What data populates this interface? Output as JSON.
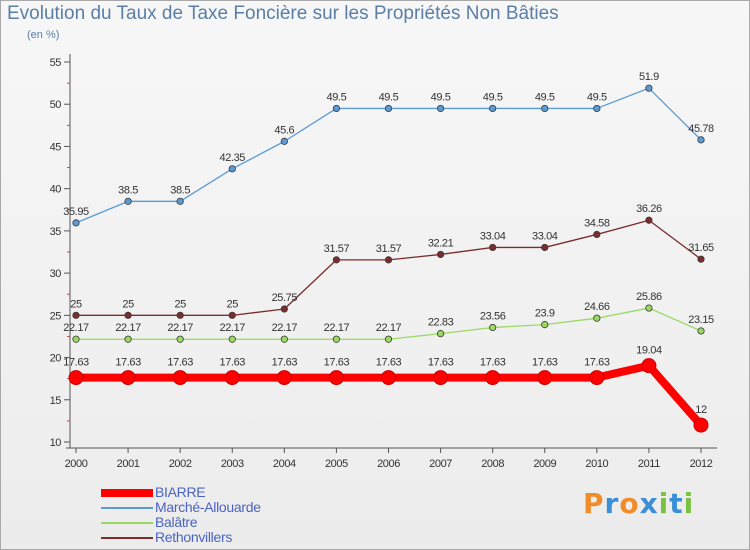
{
  "chart_data": {
    "type": "line",
    "title": "Evolution du Taux de Taxe Foncière sur les Propriétés Non Bâties",
    "subtitle": "(en %)",
    "x": [
      "2000",
      "2001",
      "2002",
      "2003",
      "2004",
      "2005",
      "2006",
      "2007",
      "2008",
      "2009",
      "2010",
      "2011",
      "2012"
    ],
    "ylim": [
      10,
      55
    ],
    "yticks": [
      "10",
      "15",
      "20",
      "25",
      "30",
      "35",
      "40",
      "45",
      "50",
      "55"
    ],
    "grid": false,
    "legend_position": "bottom-left",
    "series": [
      {
        "name": "BIARRE",
        "color": "#ff0000",
        "values": [
          17.63,
          17.63,
          17.63,
          17.63,
          17.63,
          17.63,
          17.63,
          17.63,
          17.63,
          17.63,
          17.63,
          19.04,
          12
        ],
        "labels": [
          "17.63",
          "17.63",
          "17.63",
          "17.63",
          "17.63",
          "17.63",
          "17.63",
          "17.63",
          "17.63",
          "17.63",
          "17.63",
          "19.04",
          "12"
        ]
      },
      {
        "name": "Marché-Allouarde",
        "color": "#5b9bd5",
        "values": [
          35.95,
          38.5,
          38.5,
          42.35,
          45.6,
          49.5,
          49.5,
          49.5,
          49.5,
          49.5,
          49.5,
          51.9,
          45.78
        ],
        "labels": [
          "35.95",
          "38.5",
          "38.5",
          "42.35",
          "45.6",
          "49.5",
          "49.5",
          "49.5",
          "49.5",
          "49.5",
          "49.5",
          "51.9",
          "45.78"
        ]
      },
      {
        "name": "Balâtre",
        "color": "#9ad861",
        "values": [
          22.17,
          22.17,
          22.17,
          22.17,
          22.17,
          22.17,
          22.17,
          22.83,
          23.56,
          23.9,
          24.66,
          25.86,
          23.15
        ],
        "labels": [
          "22.17",
          "22.17",
          "22.17",
          "22.17",
          "22.17",
          "22.17",
          "22.17",
          "22.83",
          "23.56",
          "23.9",
          "24.66",
          "25.86",
          "23.15"
        ]
      },
      {
        "name": "Rethonvillers",
        "color": "#7b2d2d",
        "values": [
          25,
          25,
          25,
          25,
          25.75,
          31.57,
          31.57,
          32.21,
          33.04,
          33.04,
          34.58,
          36.26,
          31.65
        ],
        "labels": [
          "25",
          "25",
          "25",
          "25",
          "25.75",
          "31.57",
          "31.57",
          "32.21",
          "33.04",
          "33.04",
          "34.58",
          "36.26",
          "31.65"
        ]
      }
    ]
  },
  "logo": {
    "text": "Proxiti",
    "colors": [
      "#f28c28",
      "#3a8fd6",
      "#f28c28",
      "#3a8fd6",
      "#7cc242",
      "#3a8fd6",
      "#7cc242"
    ]
  }
}
